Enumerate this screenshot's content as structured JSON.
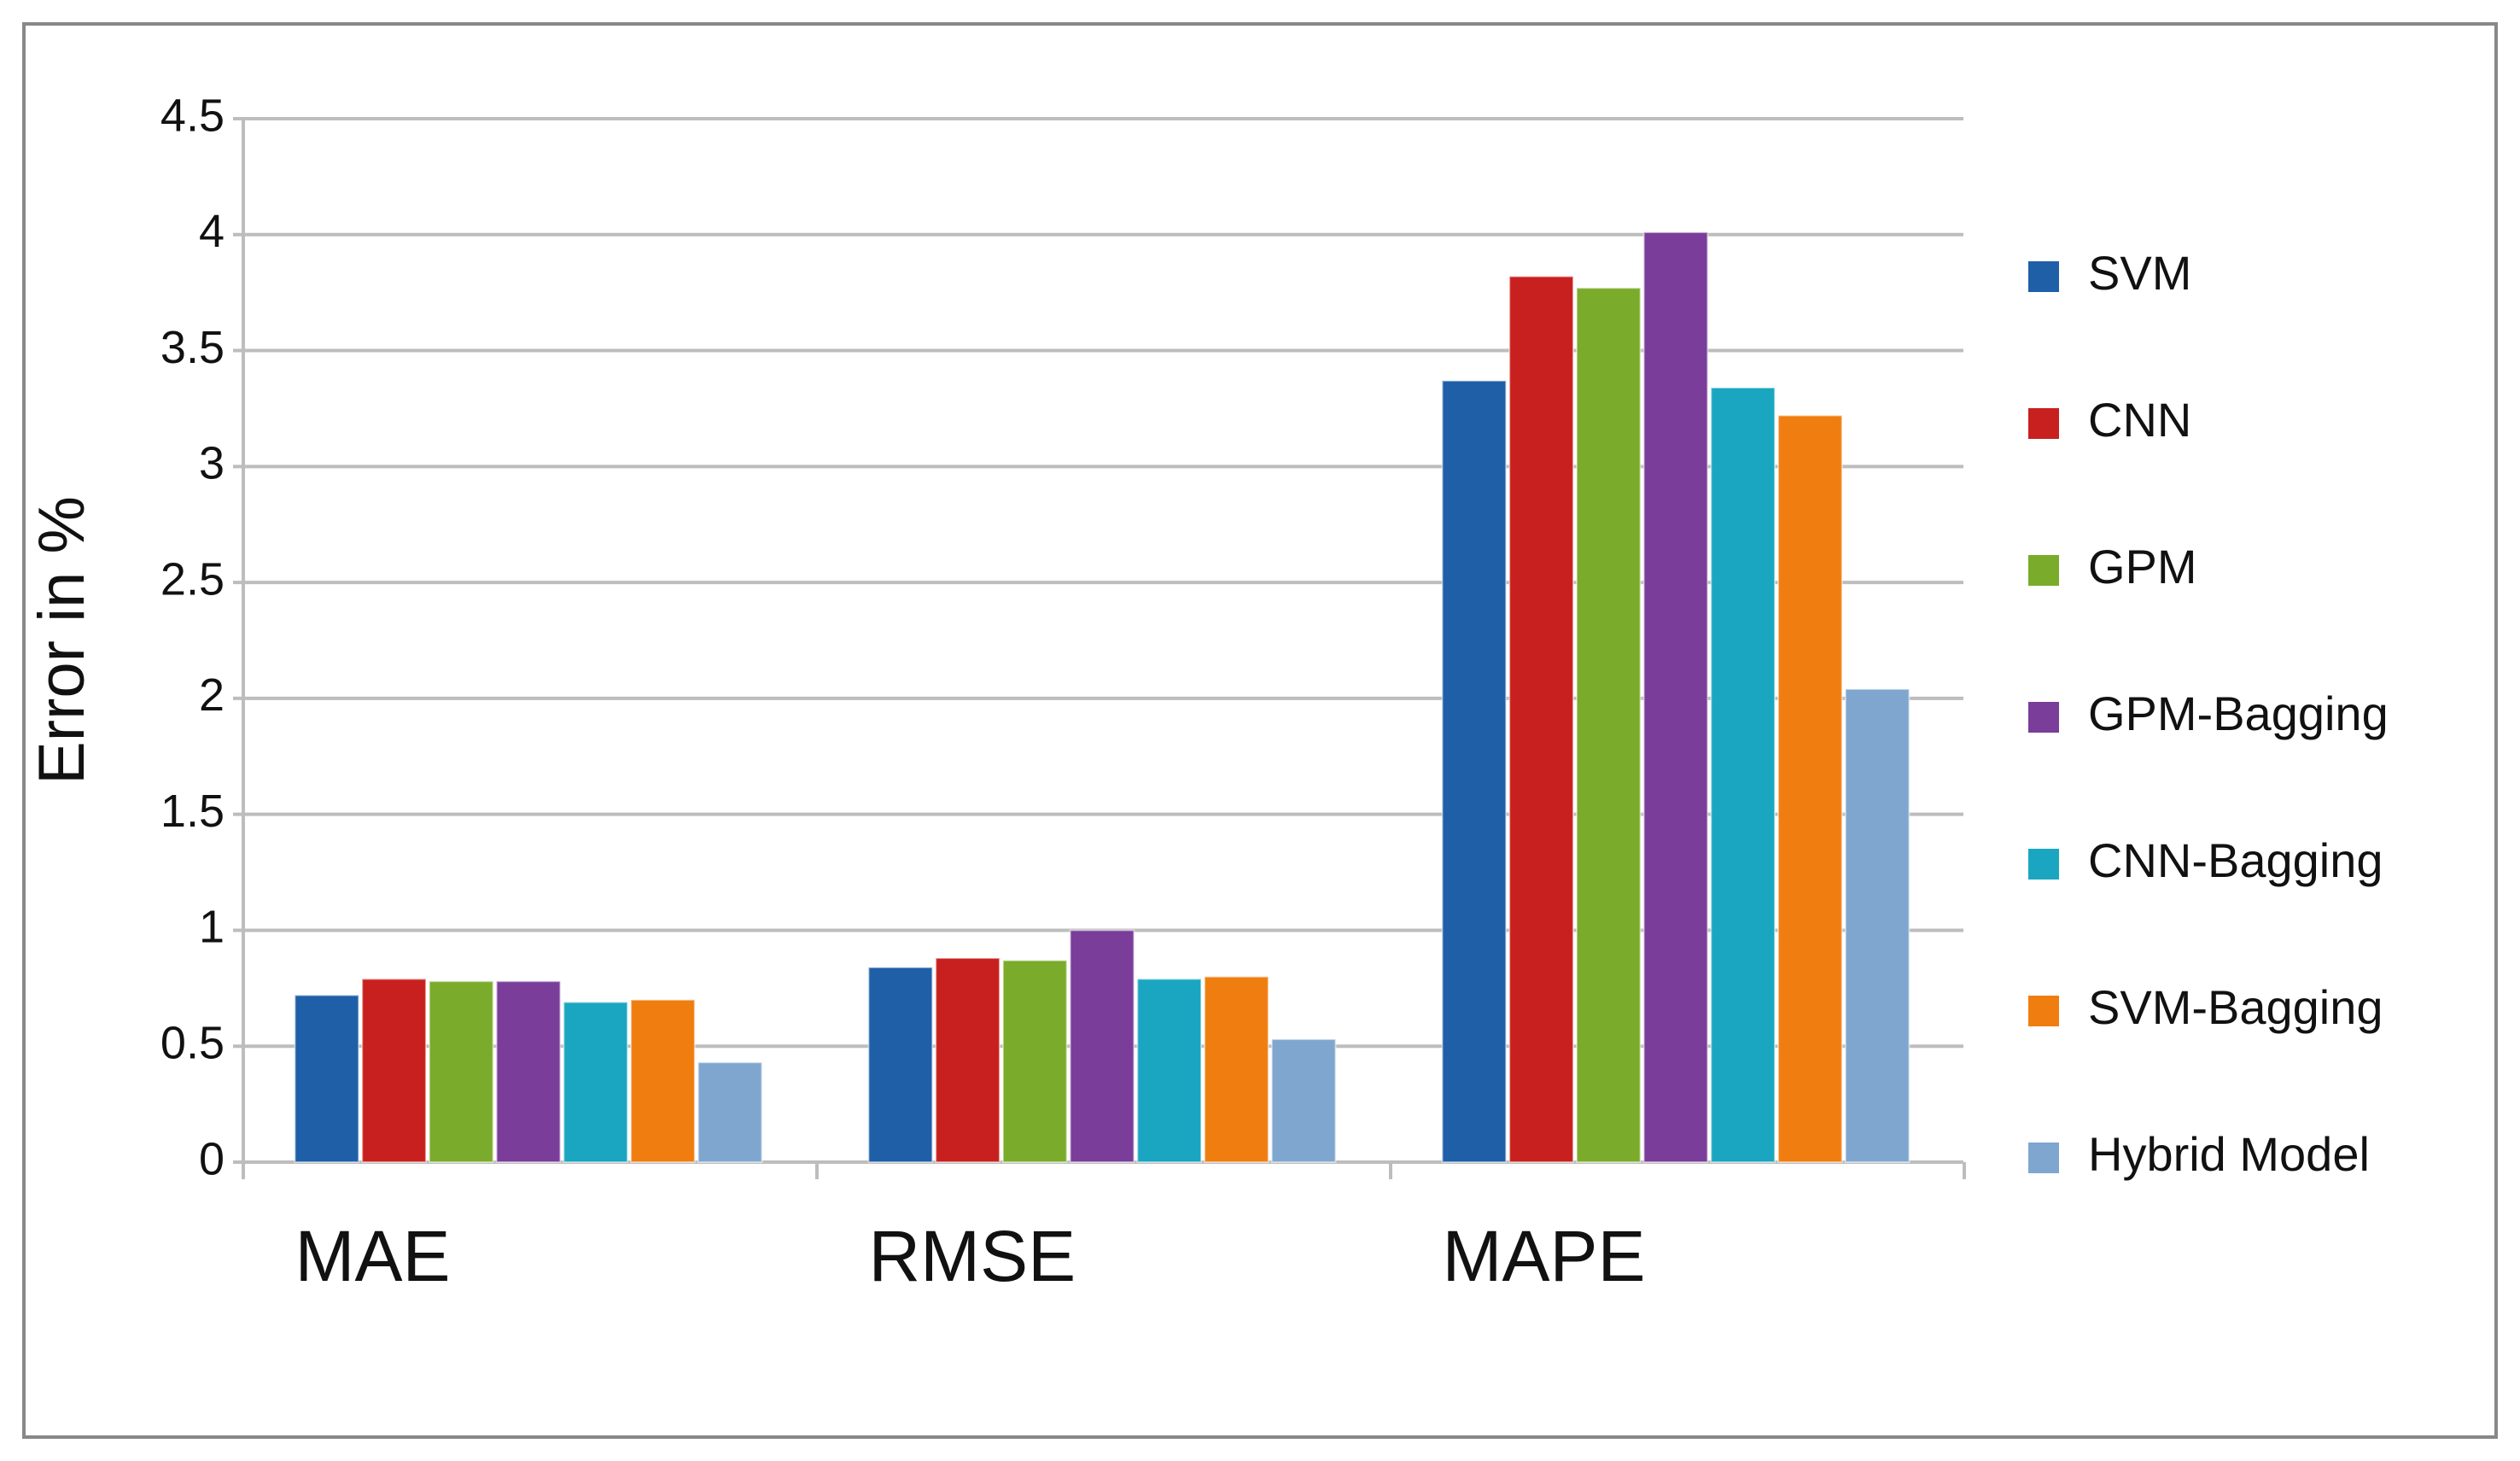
{
  "chart_data": {
    "type": "bar",
    "ylabel": "Error in %",
    "categories": [
      "MAE",
      "RMSE",
      "MAPE"
    ],
    "series": [
      {
        "name": "SVM",
        "color": "#1f5fa8",
        "values": [
          0.72,
          0.84,
          3.37
        ]
      },
      {
        "name": "CNN",
        "color": "#c8201e",
        "values": [
          0.79,
          0.88,
          3.82
        ]
      },
      {
        "name": "GPM",
        "color": "#7aab2a",
        "values": [
          0.78,
          0.87,
          3.77
        ]
      },
      {
        "name": "GPM-Bagging",
        "color": "#7a3d9a",
        "values": [
          0.78,
          1.0,
          4.01
        ]
      },
      {
        "name": "CNN-Bagging",
        "color": "#1aa6c0",
        "values": [
          0.69,
          0.79,
          3.34
        ]
      },
      {
        "name": "SVM-Bagging",
        "color": "#f07d10",
        "values": [
          0.7,
          0.8,
          3.22
        ]
      },
      {
        "name": "Hybrid Model",
        "color": "#7fa6cf",
        "values": [
          0.43,
          0.53,
          2.04
        ]
      }
    ],
    "ylim": [
      0,
      4.5
    ],
    "yticks": [
      0,
      0.5,
      1,
      1.5,
      2,
      2.5,
      3,
      3.5,
      4,
      4.5
    ],
    "grid": true,
    "legend": "right"
  }
}
